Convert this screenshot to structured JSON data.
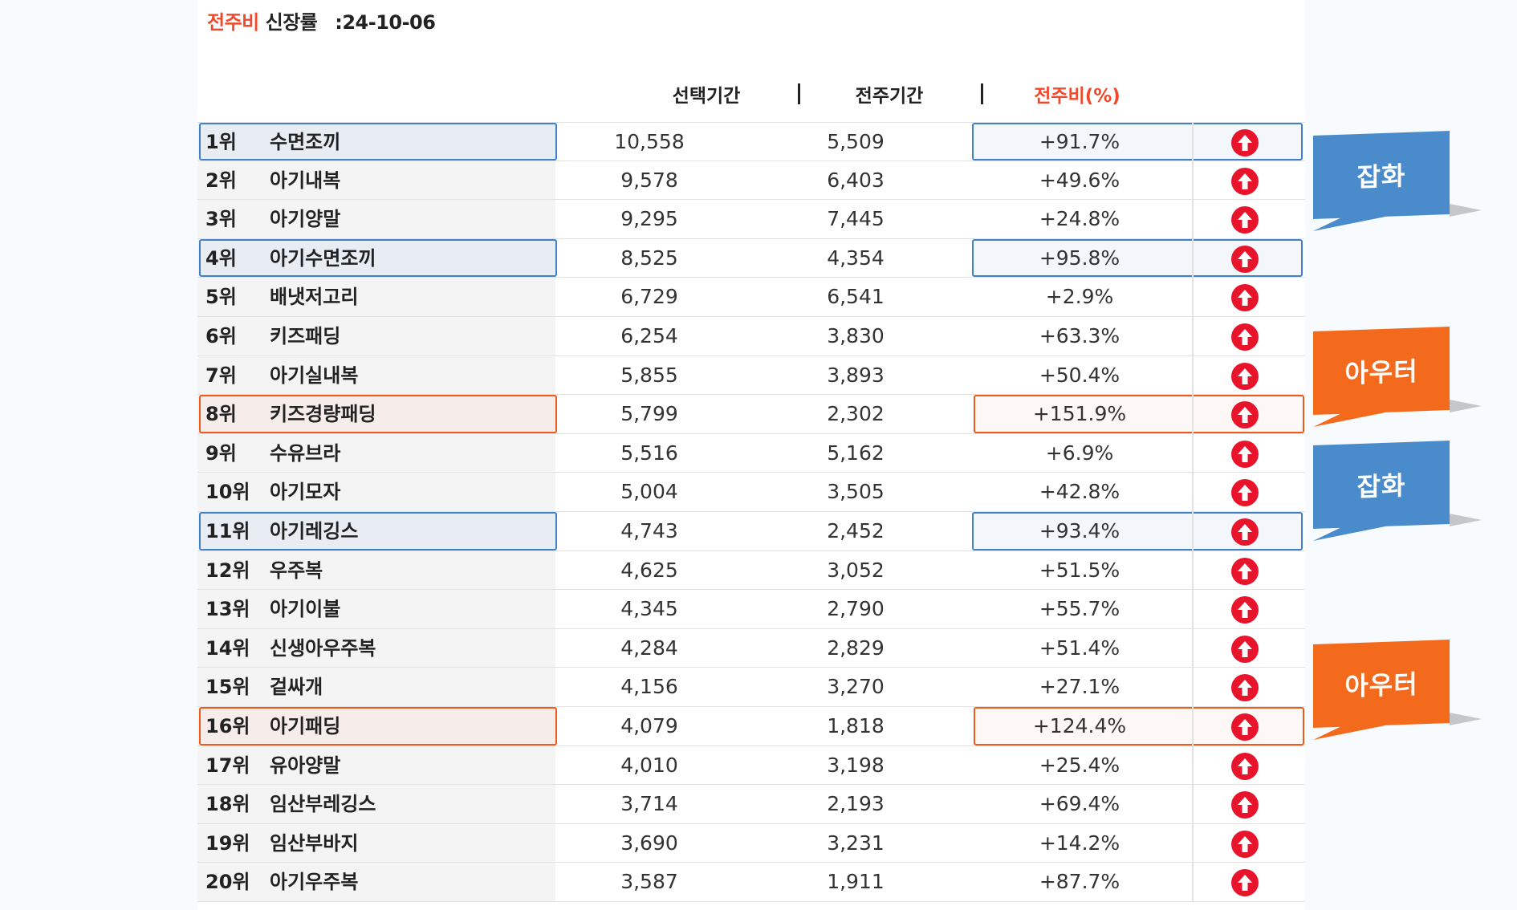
{
  "header": {
    "title_accent": "전주비",
    "title_main": "신장률",
    "title_colon": ":",
    "title_date": "24-10-06",
    "col_selected": "선택기간",
    "col_previous": "전주기간",
    "col_ratio": "전주비(%)"
  },
  "colors": {
    "accent_red": "#f0492b",
    "arrow_red": "#e8142b",
    "highlight_blue": "#3f82c8",
    "highlight_orange": "#f05a1a",
    "callout_blue": "#4a8ccb",
    "callout_orange": "#f46a1c"
  },
  "rows": [
    {
      "rank": "1위",
      "keyword": "수면조끼",
      "selected": "10,558",
      "previous": "5,509",
      "ratio": "+91.7%",
      "trend_icon": "arrow-up-circle-icon",
      "highlight": "blue"
    },
    {
      "rank": "2위",
      "keyword": "아기내복",
      "selected": "9,578",
      "previous": "6,403",
      "ratio": "+49.6%",
      "trend_icon": "arrow-up-circle-icon",
      "highlight": ""
    },
    {
      "rank": "3위",
      "keyword": "아기양말",
      "selected": "9,295",
      "previous": "7,445",
      "ratio": "+24.8%",
      "trend_icon": "arrow-up-circle-icon",
      "highlight": ""
    },
    {
      "rank": "4위",
      "keyword": "아기수면조끼",
      "selected": "8,525",
      "previous": "4,354",
      "ratio": "+95.8%",
      "trend_icon": "arrow-up-circle-icon",
      "highlight": "blue"
    },
    {
      "rank": "5위",
      "keyword": "배냇저고리",
      "selected": "6,729",
      "previous": "6,541",
      "ratio": "+2.9%",
      "trend_icon": "arrow-up-circle-icon",
      "highlight": ""
    },
    {
      "rank": "6위",
      "keyword": "키즈패딩",
      "selected": "6,254",
      "previous": "3,830",
      "ratio": "+63.3%",
      "trend_icon": "arrow-up-circle-icon",
      "highlight": ""
    },
    {
      "rank": "7위",
      "keyword": "아기실내복",
      "selected": "5,855",
      "previous": "3,893",
      "ratio": "+50.4%",
      "trend_icon": "arrow-up-circle-icon",
      "highlight": ""
    },
    {
      "rank": "8위",
      "keyword": "키즈경량패딩",
      "selected": "5,799",
      "previous": "2,302",
      "ratio": "+151.9%",
      "trend_icon": "arrow-up-circle-icon",
      "highlight": "orange"
    },
    {
      "rank": "9위",
      "keyword": "수유브라",
      "selected": "5,516",
      "previous": "5,162",
      "ratio": "+6.9%",
      "trend_icon": "arrow-up-circle-icon",
      "highlight": ""
    },
    {
      "rank": "10위",
      "keyword": "아기모자",
      "selected": "5,004",
      "previous": "3,505",
      "ratio": "+42.8%",
      "trend_icon": "arrow-up-circle-icon",
      "highlight": ""
    },
    {
      "rank": "11위",
      "keyword": "아기레깅스",
      "selected": "4,743",
      "previous": "2,452",
      "ratio": "+93.4%",
      "trend_icon": "arrow-up-circle-icon",
      "highlight": "blue"
    },
    {
      "rank": "12위",
      "keyword": "우주복",
      "selected": "4,625",
      "previous": "3,052",
      "ratio": "+51.5%",
      "trend_icon": "arrow-up-circle-icon",
      "highlight": ""
    },
    {
      "rank": "13위",
      "keyword": "아기이불",
      "selected": "4,345",
      "previous": "2,790",
      "ratio": "+55.7%",
      "trend_icon": "arrow-up-circle-icon",
      "highlight": ""
    },
    {
      "rank": "14위",
      "keyword": "신생아우주복",
      "selected": "4,284",
      "previous": "2,829",
      "ratio": "+51.4%",
      "trend_icon": "arrow-up-circle-icon",
      "highlight": ""
    },
    {
      "rank": "15위",
      "keyword": "겉싸개",
      "selected": "4,156",
      "previous": "3,270",
      "ratio": "+27.1%",
      "trend_icon": "arrow-up-circle-icon",
      "highlight": ""
    },
    {
      "rank": "16위",
      "keyword": "아기패딩",
      "selected": "4,079",
      "previous": "1,818",
      "ratio": "+124.4%",
      "trend_icon": "arrow-up-circle-icon",
      "highlight": "orange"
    },
    {
      "rank": "17위",
      "keyword": "유아양말",
      "selected": "4,010",
      "previous": "3,198",
      "ratio": "+25.4%",
      "trend_icon": "arrow-up-circle-icon",
      "highlight": ""
    },
    {
      "rank": "18위",
      "keyword": "임산부레깅스",
      "selected": "3,714",
      "previous": "2,193",
      "ratio": "+69.4%",
      "trend_icon": "arrow-up-circle-icon",
      "highlight": ""
    },
    {
      "rank": "19위",
      "keyword": "임산부바지",
      "selected": "3,690",
      "previous": "3,231",
      "ratio": "+14.2%",
      "trend_icon": "arrow-up-circle-icon",
      "highlight": ""
    },
    {
      "rank": "20위",
      "keyword": "아기우주복",
      "selected": "3,587",
      "previous": "1,911",
      "ratio": "+87.7%",
      "trend_icon": "arrow-up-circle-icon",
      "highlight": ""
    }
  ],
  "callouts": [
    {
      "label": "잡화",
      "color": "blue"
    },
    {
      "label": "아우터",
      "color": "orange"
    },
    {
      "label": "잡화",
      "color": "blue"
    },
    {
      "label": "아우터",
      "color": "orange"
    }
  ]
}
